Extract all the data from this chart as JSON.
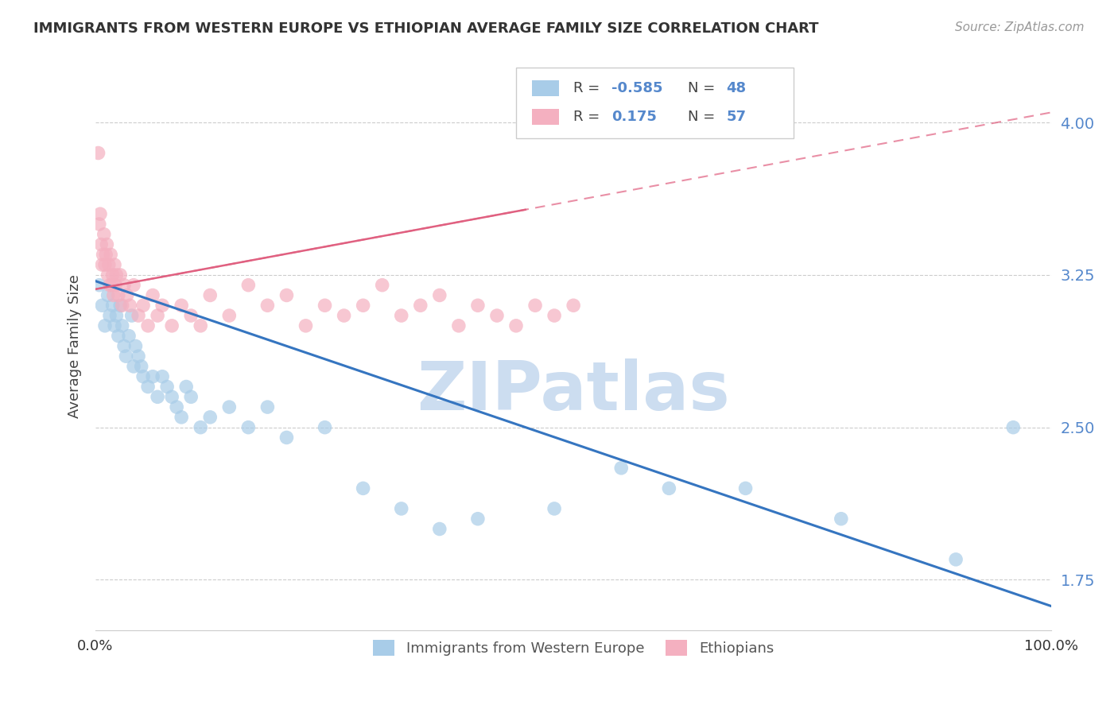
{
  "title": "IMMIGRANTS FROM WESTERN EUROPE VS ETHIOPIAN AVERAGE FAMILY SIZE CORRELATION CHART",
  "source_text": "Source: ZipAtlas.com",
  "ylabel": "Average Family Size",
  "xlim": [
    0,
    100
  ],
  "ylim": [
    1.5,
    4.3
  ],
  "yticks": [
    1.75,
    2.5,
    3.25,
    4.0
  ],
  "ytick_labels": [
    "1.75",
    "2.50",
    "3.25",
    "4.00"
  ],
  "legend_r_blue": "-0.585",
  "legend_n_blue": "48",
  "legend_r_pink": "0.175",
  "legend_n_pink": "57",
  "blue_color": "#a8cce8",
  "pink_color": "#f4b0c0",
  "blue_line_color": "#3575c0",
  "pink_line_color": "#e06080",
  "watermark": "ZIPatlas",
  "watermark_color": "#ccddf0",
  "blue_scatter_x": [
    0.4,
    0.7,
    1.0,
    1.3,
    1.5,
    1.8,
    2.0,
    2.2,
    2.4,
    2.6,
    2.8,
    3.0,
    3.2,
    3.5,
    3.8,
    4.0,
    4.2,
    4.5,
    4.8,
    5.0,
    5.5,
    6.0,
    6.5,
    7.0,
    7.5,
    8.0,
    8.5,
    9.0,
    9.5,
    10.0,
    11.0,
    12.0,
    14.0,
    16.0,
    18.0,
    20.0,
    24.0,
    28.0,
    32.0,
    36.0,
    40.0,
    48.0,
    55.0,
    60.0,
    68.0,
    78.0,
    90.0,
    96.0
  ],
  "blue_scatter_y": [
    3.2,
    3.1,
    3.0,
    3.15,
    3.05,
    3.1,
    3.0,
    3.05,
    2.95,
    3.1,
    3.0,
    2.9,
    2.85,
    2.95,
    3.05,
    2.8,
    2.9,
    2.85,
    2.8,
    2.75,
    2.7,
    2.75,
    2.65,
    2.75,
    2.7,
    2.65,
    2.6,
    2.55,
    2.7,
    2.65,
    2.5,
    2.55,
    2.6,
    2.5,
    2.6,
    2.45,
    2.5,
    2.2,
    2.1,
    2.0,
    2.05,
    2.1,
    2.3,
    2.2,
    2.2,
    2.05,
    1.85,
    2.5
  ],
  "pink_scatter_x": [
    0.3,
    0.4,
    0.5,
    0.6,
    0.7,
    0.8,
    0.9,
    1.0,
    1.1,
    1.2,
    1.3,
    1.4,
    1.5,
    1.6,
    1.7,
    1.8,
    1.9,
    2.0,
    2.1,
    2.2,
    2.4,
    2.6,
    2.8,
    3.0,
    3.3,
    3.6,
    4.0,
    4.5,
    5.0,
    5.5,
    6.0,
    6.5,
    7.0,
    8.0,
    9.0,
    10.0,
    11.0,
    12.0,
    14.0,
    16.0,
    18.0,
    20.0,
    22.0,
    24.0,
    26.0,
    28.0,
    30.0,
    32.0,
    34.0,
    36.0,
    38.0,
    40.0,
    42.0,
    44.0,
    46.0,
    48.0,
    50.0
  ],
  "pink_scatter_y": [
    3.85,
    3.5,
    3.55,
    3.4,
    3.3,
    3.35,
    3.45,
    3.3,
    3.35,
    3.4,
    3.25,
    3.3,
    3.2,
    3.35,
    3.2,
    3.25,
    3.15,
    3.3,
    3.2,
    3.25,
    3.15,
    3.25,
    3.1,
    3.2,
    3.15,
    3.1,
    3.2,
    3.05,
    3.1,
    3.0,
    3.15,
    3.05,
    3.1,
    3.0,
    3.1,
    3.05,
    3.0,
    3.15,
    3.05,
    3.2,
    3.1,
    3.15,
    3.0,
    3.1,
    3.05,
    3.1,
    3.2,
    3.05,
    3.1,
    3.15,
    3.0,
    3.1,
    3.05,
    3.0,
    3.1,
    3.05,
    3.1
  ],
  "blue_line_x0": 0,
  "blue_line_y0": 3.22,
  "blue_line_x1": 100,
  "blue_line_y1": 1.62,
  "pink_line_x0": 0,
  "pink_line_y0": 3.18,
  "pink_line_x1": 100,
  "pink_line_y1": 4.05
}
